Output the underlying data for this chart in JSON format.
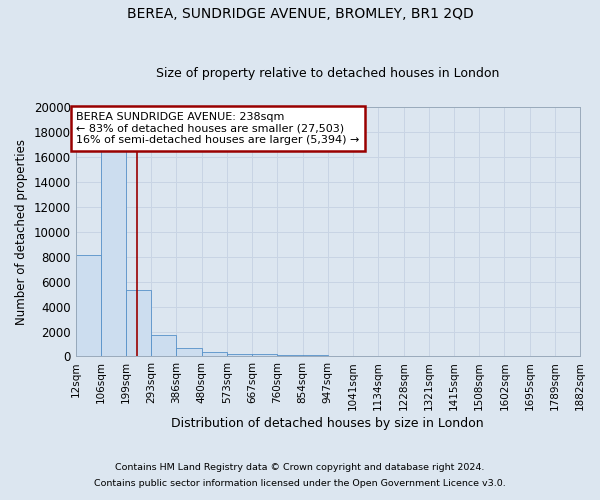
{
  "title": "BEREA, SUNDRIDGE AVENUE, BROMLEY, BR1 2QD",
  "subtitle": "Size of property relative to detached houses in London",
  "xlabel": "Distribution of detached houses by size in London",
  "ylabel": "Number of detached properties",
  "footnote1": "Contains HM Land Registry data © Crown copyright and database right 2024.",
  "footnote2": "Contains public sector information licensed under the Open Government Licence v3.0.",
  "annotation_line1": "BEREA SUNDRIDGE AVENUE: 238sqm",
  "annotation_line2": "← 83% of detached houses are smaller (27,503)",
  "annotation_line3": "16% of semi-detached houses are larger (5,394) →",
  "property_size": 238,
  "bins": [
    12,
    106,
    199,
    293,
    386,
    480,
    573,
    667,
    760,
    854,
    947,
    1041,
    1134,
    1228,
    1321,
    1415,
    1508,
    1602,
    1695,
    1789,
    1882
  ],
  "bar_heights": [
    8100,
    16650,
    5300,
    1750,
    700,
    370,
    220,
    160,
    110,
    80,
    60,
    45,
    35,
    28,
    22,
    18,
    14,
    11,
    9,
    7
  ],
  "bar_color": "#ccddef",
  "bar_edge_color": "#5590c8",
  "red_line_color": "#990000",
  "grid_color": "#c8d4e4",
  "bg_color": "#dce6f0",
  "ylim": [
    0,
    20000
  ],
  "yticks": [
    0,
    2000,
    4000,
    6000,
    8000,
    10000,
    12000,
    14000,
    16000,
    18000,
    20000
  ]
}
